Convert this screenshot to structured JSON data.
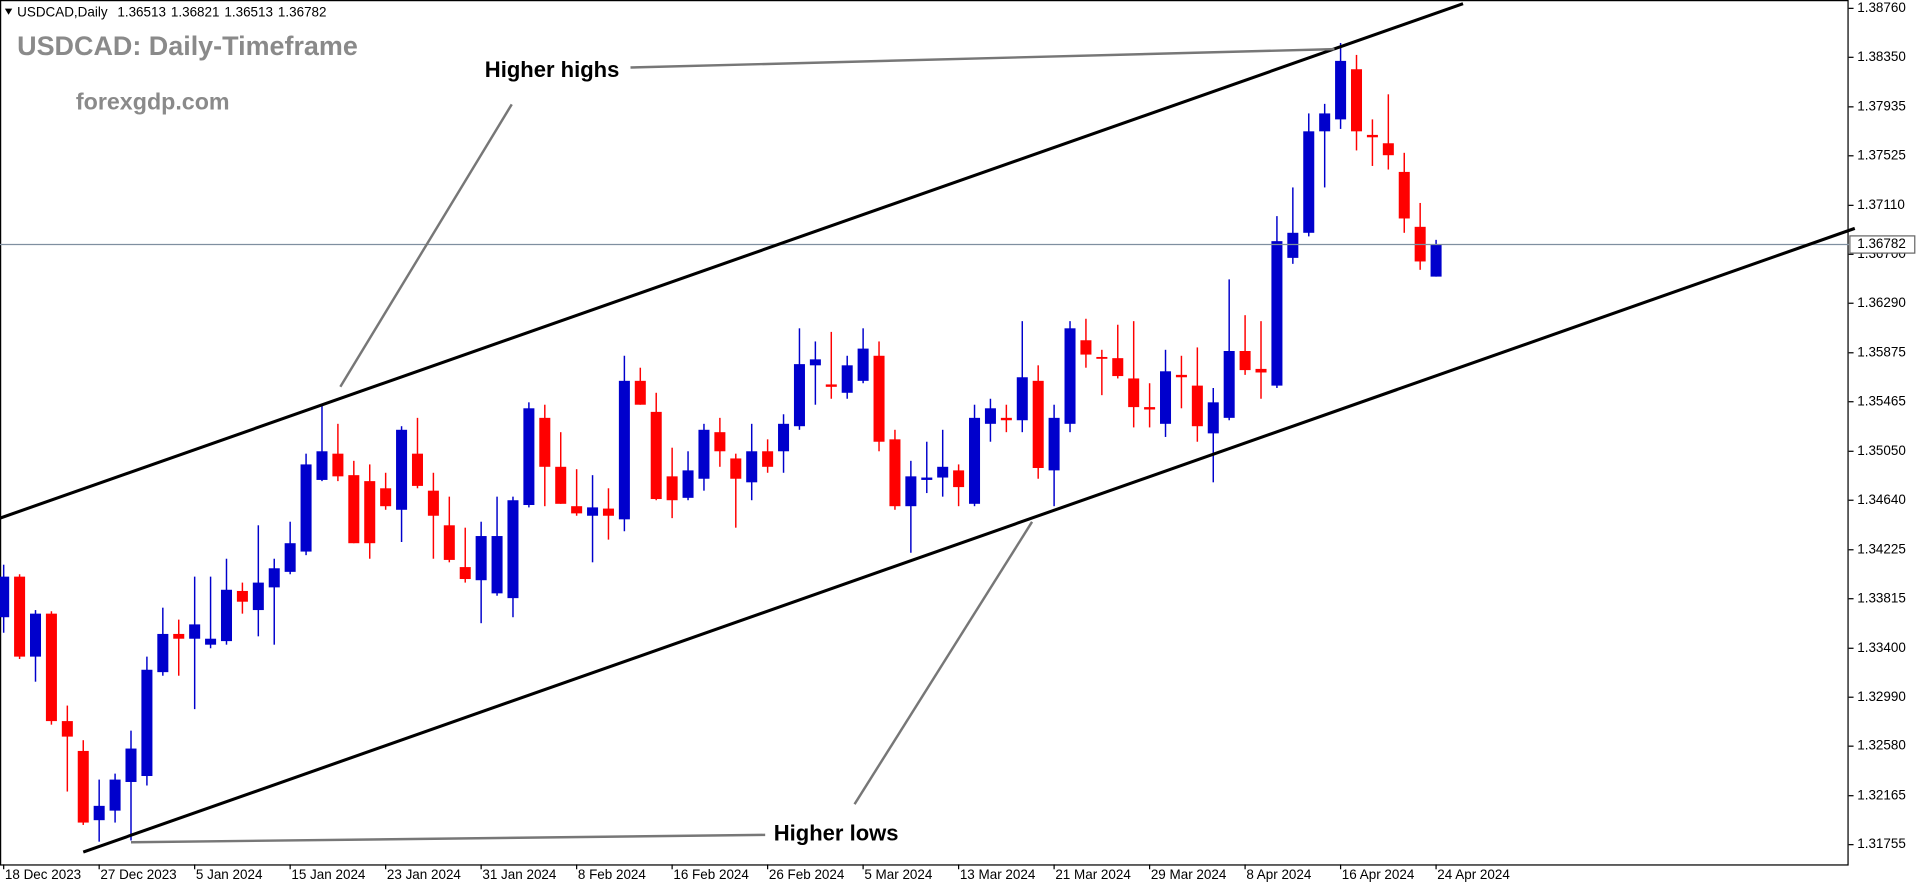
{
  "chart_data": {
    "type": "candlestick",
    "title": "USDCAD: Daily-Timeframe",
    "subtitle": "forexgdp.com",
    "symbol": "USDCAD,Daily",
    "annotations": [
      "Higher highs",
      "Higher lows"
    ],
    "categories": [
      "18 Dec 2023",
      null,
      null,
      null,
      null,
      null,
      "27 Dec 2023",
      null,
      null,
      null,
      null,
      null,
      "5 Jan 2024",
      null,
      null,
      null,
      null,
      null,
      "15 Jan 2024",
      null,
      null,
      null,
      null,
      null,
      "23 Jan 2024",
      null,
      null,
      null,
      null,
      null,
      "31 Jan 2024",
      null,
      null,
      null,
      null,
      null,
      "8 Feb 2024",
      null,
      null,
      null,
      null,
      null,
      "16 Feb 2024",
      null,
      null,
      null,
      null,
      null,
      "26 Feb 2024",
      null,
      null,
      null,
      null,
      null,
      "5 Mar 2024",
      null,
      null,
      null,
      null,
      null,
      "13 Mar 2024",
      null,
      null,
      null,
      null,
      null,
      "21 Mar 2024",
      null,
      null,
      null,
      null,
      null,
      "29 Mar 2024",
      null,
      null,
      null,
      null,
      null,
      "8 Apr 2024",
      null,
      null,
      null,
      null,
      null,
      "16 Apr 2024",
      null,
      null,
      null,
      null,
      null,
      "24 Apr 2024"
    ],
    "open": [
      1.3366,
      1.34,
      1.3333,
      1.3369,
      1.3279,
      1.3254,
      1.3196,
      1.3204,
      1.3228,
      1.3233,
      1.332,
      1.3352,
      1.3348,
      1.3343,
      1.3346,
      1.3388,
      1.3372,
      1.3391,
      1.3404,
      1.3421,
      1.3481,
      1.3503,
      1.3485,
      1.348,
      1.3474,
      1.3456,
      1.3503,
      1.3472,
      1.3443,
      1.3408,
      1.3397,
      1.3386,
      1.3382,
      1.346,
      1.3533,
      1.3492,
      1.3459,
      1.3451,
      1.3457,
      1.3448,
      1.3564,
      1.3538,
      1.3484,
      1.3466,
      1.3482,
      1.3521,
      1.3499,
      1.3479,
      1.3505,
      1.3505,
      1.3526,
      1.3577,
      1.3561,
      1.3554,
      1.3564,
      1.3585,
      1.3515,
      1.3459,
      1.3481,
      1.3483,
      1.3489,
      1.3461,
      1.3528,
      1.3533,
      1.3531,
      1.3564,
      1.3489,
      1.3528,
      1.3598,
      1.3584,
      1.3583,
      1.3566,
      1.3542,
      1.3528,
      1.3569,
      1.356,
      1.352,
      1.3533,
      1.3589,
      1.3574,
      1.356,
      1.3667,
      1.3688,
      1.3773,
      1.3783,
      1.3825,
      1.377,
      1.3763,
      1.3739,
      1.3693,
      1.36513
    ],
    "high": [
      1.341,
      1.3402,
      1.3372,
      1.3371,
      1.3292,
      1.3263,
      1.323,
      1.3235,
      1.3271,
      1.3333,
      1.3374,
      1.3364,
      1.34,
      1.34,
      1.3415,
      1.3395,
      1.3443,
      1.3415,
      1.3446,
      1.3503,
      1.3544,
      1.3528,
      1.3497,
      1.3494,
      1.3487,
      1.3526,
      1.3533,
      1.3487,
      1.3467,
      1.3441,
      1.3446,
      1.3467,
      1.3467,
      1.3546,
      1.3544,
      1.3521,
      1.349,
      1.3485,
      1.3474,
      1.3585,
      1.3575,
      1.3554,
      1.3508,
      1.3505,
      1.3528,
      1.3533,
      1.3503,
      1.3528,
      1.3515,
      1.3536,
      1.3608,
      1.3597,
      1.3605,
      1.3585,
      1.3608,
      1.3597,
      1.3523,
      1.3497,
      1.3513,
      1.3523,
      1.3494,
      1.3544,
      1.3549,
      1.3544,
      1.3614,
      1.3577,
      1.3544,
      1.3614,
      1.3616,
      1.359,
      1.3611,
      1.3614,
      1.3562,
      1.359,
      1.3585,
      1.3592,
      1.3558,
      1.3649,
      1.3619,
      1.3614,
      1.3702,
      1.3726,
      1.3788,
      1.3796,
      1.3847,
      1.3837,
      1.3783,
      1.3804,
      1.3755,
      1.3713,
      1.36821
    ],
    "low": [
      1.3353,
      1.3331,
      1.3312,
      1.3276,
      1.322,
      1.3192,
      1.3178,
      1.3194,
      1.3179,
      1.3225,
      1.3317,
      1.3317,
      1.3289,
      1.334,
      1.3343,
      1.3369,
      1.335,
      1.3343,
      1.3402,
      1.3418,
      1.348,
      1.348,
      1.3428,
      1.3415,
      1.3456,
      1.3429,
      1.3474,
      1.3415,
      1.3412,
      1.3395,
      1.3361,
      1.3384,
      1.3366,
      1.3458,
      1.3459,
      1.3461,
      1.3451,
      1.3412,
      1.3431,
      1.3438,
      1.3544,
      1.3464,
      1.3449,
      1.3464,
      1.3472,
      1.3492,
      1.3441,
      1.3464,
      1.3487,
      1.3487,
      1.3523,
      1.3544,
      1.3549,
      1.3549,
      1.3562,
      1.3505,
      1.3456,
      1.342,
      1.347,
      1.3467,
      1.3459,
      1.3459,
      1.3513,
      1.3521,
      1.3521,
      1.3482,
      1.3459,
      1.3521,
      1.3575,
      1.3552,
      1.3566,
      1.3525,
      1.3525,
      1.3517,
      1.3541,
      1.3513,
      1.3479,
      1.3531,
      1.3569,
      1.3549,
      1.3558,
      1.3662,
      1.3685,
      1.3726,
      1.3775,
      1.3757,
      1.3744,
      1.3741,
      1.3688,
      1.3657,
      1.36513
    ],
    "close": [
      1.34,
      1.3333,
      1.3369,
      1.3279,
      1.3266,
      1.3194,
      1.3208,
      1.323,
      1.3256,
      1.3322,
      1.3352,
      1.3348,
      1.336,
      1.3348,
      1.3389,
      1.3379,
      1.3395,
      1.3407,
      1.3428,
      1.3494,
      1.3505,
      1.3484,
      1.3428,
      1.3428,
      1.3459,
      1.3523,
      1.3476,
      1.3451,
      1.3414,
      1.3398,
      1.3434,
      1.3434,
      1.3464,
      1.3541,
      1.3492,
      1.3461,
      1.3453,
      1.3458,
      1.3451,
      1.3564,
      1.3544,
      1.3465,
      1.3464,
      1.3489,
      1.3523,
      1.3505,
      1.3482,
      1.3505,
      1.3492,
      1.3528,
      1.3578,
      1.3582,
      1.3559,
      1.3577,
      1.3591,
      1.3513,
      1.3459,
      1.3484,
      1.3483,
      1.3492,
      1.3475,
      1.3533,
      1.3541,
      1.3531,
      1.3567,
      1.3491,
      1.3533,
      1.3608,
      1.3586,
      1.3583,
      1.3568,
      1.3542,
      1.354,
      1.3572,
      1.3567,
      1.3526,
      1.3546,
      1.3589,
      1.3573,
      1.3571,
      1.3681,
      1.3688,
      1.3773,
      1.3788,
      1.3832,
      1.3773,
      1.3768,
      1.3753,
      1.37,
      1.3664,
      1.36782
    ],
    "up_color": "#0000cc",
    "down_color": "#ff0000",
    "ylim": [
      1.3159,
      1.3883
    ],
    "yticks": [
      {
        "value": 1.3876,
        "label": "1.38760"
      },
      {
        "value": 1.3835,
        "label": "1.38350"
      },
      1.37935,
      1.37525,
      {
        "value": 1.3711,
        "label": "1.37110"
      },
      {
        "value": 1.367,
        "label": "1.36700"
      },
      {
        "value": 1.3629,
        "label": "1.36290"
      },
      1.35875,
      1.35465,
      {
        "value": 1.3505,
        "label": "1.35050"
      },
      {
        "value": 1.3464,
        "label": "1.34640"
      },
      1.34225,
      1.33815,
      {
        "value": 1.334,
        "label": "1.33400"
      },
      {
        "value": 1.3299,
        "label": "1.32990"
      },
      {
        "value": 1.3258,
        "label": "1.32580"
      },
      1.32165,
      1.31755
    ],
    "grid": false
  }
}
